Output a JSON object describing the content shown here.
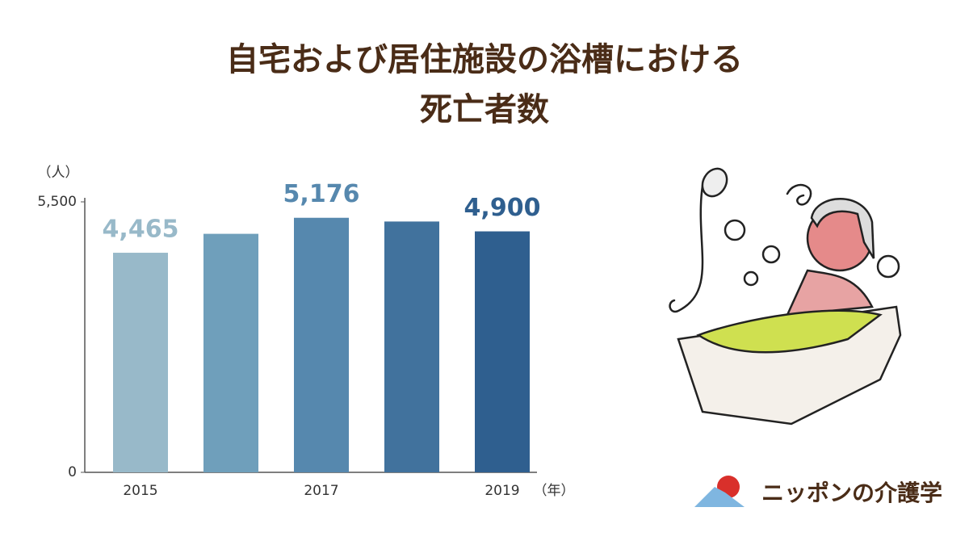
{
  "chart_data": {
    "type": "bar",
    "title": [
      "自宅および居住施設の浴槽における",
      "死亡者数"
    ],
    "y_unit": "（人）",
    "x_unit": "（年）",
    "categories": [
      "2015",
      null,
      "2017",
      null,
      "2019"
    ],
    "values": [
      4465,
      4850,
      5176,
      5100,
      4900
    ],
    "value_labels": [
      "4,465",
      null,
      "5,176",
      null,
      "4,900"
    ],
    "colors": [
      "#98b9c9",
      "#6f9fbb",
      "#5688ae",
      "#41729d",
      "#2f5f8f"
    ],
    "ylim": [
      0,
      5500
    ],
    "yticks": [
      0,
      {
        "value": 5500,
        "label": "5,500"
      }
    ],
    "grid": false
  },
  "brand": "ニッポンの介護学"
}
